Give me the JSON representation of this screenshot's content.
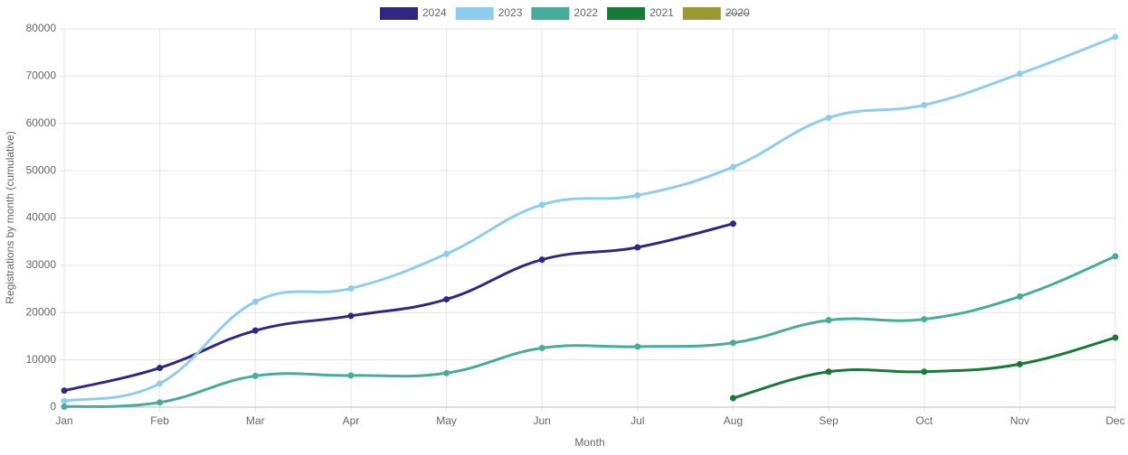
{
  "chart_data": {
    "type": "line",
    "x_label": "Month",
    "y_label": "Registrations by month (cumulative)",
    "categories": [
      "Jan",
      "Feb",
      "Mar",
      "Apr",
      "May",
      "Jun",
      "Jul",
      "Aug",
      "Sep",
      "Oct",
      "Nov",
      "Dec"
    ],
    "series": [
      {
        "name": "2024",
        "color": "#312783",
        "values": [
          3500,
          8300,
          16200,
          19300,
          22800,
          31200,
          33800,
          38800,
          null,
          null,
          null,
          null
        ]
      },
      {
        "name": "2023",
        "color": "#8ecdee",
        "values": [
          1300,
          5000,
          22300,
          25100,
          32400,
          42800,
          44800,
          50800,
          61200,
          63900,
          70500,
          78300
        ]
      },
      {
        "name": "2022",
        "color": "#47ad9b",
        "values": [
          100,
          1000,
          6600,
          6700,
          7200,
          12500,
          12800,
          13600,
          18400,
          18600,
          23400,
          31900
        ]
      },
      {
        "name": "2021",
        "color": "#177a37",
        "values": [
          null,
          null,
          null,
          null,
          null,
          null,
          null,
          1900,
          7500,
          7500,
          9100,
          14700
        ]
      },
      {
        "name": "2020",
        "color": "#9b9a32",
        "hidden": true,
        "values": [
          null,
          null,
          null,
          null,
          null,
          null,
          null,
          null,
          null,
          null,
          null,
          null
        ]
      }
    ],
    "ylim": [
      0,
      80000
    ],
    "yticks": [
      0,
      10000,
      20000,
      30000,
      40000,
      50000,
      60000,
      70000,
      80000
    ],
    "grid": true,
    "legend": "top"
  }
}
